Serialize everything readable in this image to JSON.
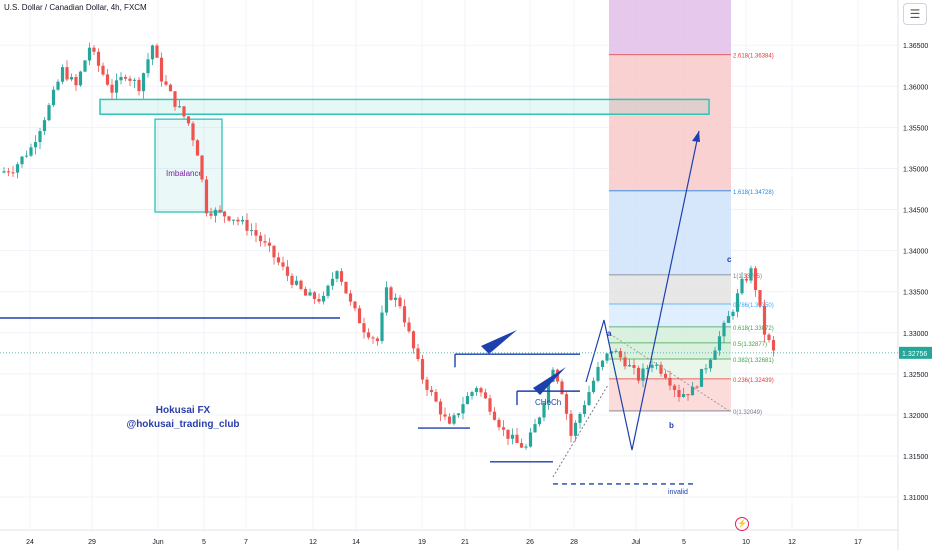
{
  "header": {
    "title": "U.S. Dollar / Canadian Dollar, 4h, FXCM",
    "menu_icon": "menu-icon"
  },
  "watermark": {
    "line1": "Hokusai FX",
    "line2": "@hokusai_trading_club"
  },
  "colors": {
    "up": "#26a69a",
    "down": "#ef5350",
    "drawing": "#1e40af",
    "zone": "#2ec4b6",
    "price_tag": "#26a69a"
  },
  "chart_data": {
    "type": "candlestick",
    "title": "U.S. Dollar / Canadian Dollar, 4h, FXCM",
    "ylim": [
      1.306,
      1.3705
    ],
    "y_ticks": [
      "1.36500",
      "1.36000",
      "1.35500",
      "1.35000",
      "1.34500",
      "1.34000",
      "1.33500",
      "1.33000",
      "1.32500",
      "1.32000",
      "1.31500",
      "1.31000"
    ],
    "x_ticks": [
      "24",
      "29",
      "Jun",
      "5",
      "7",
      "12",
      "14",
      "19",
      "21",
      "26",
      "28",
      "Jul",
      "5",
      "10",
      "12",
      "17"
    ],
    "last_price": "1.32756",
    "grid": true,
    "path": [
      [
        0,
        1.3495
      ],
      [
        3,
        1.35
      ],
      [
        7,
        1.3525
      ],
      [
        11,
        1.3575
      ],
      [
        14,
        1.362
      ],
      [
        17,
        1.36
      ],
      [
        20,
        1.3648
      ],
      [
        22,
        1.3625
      ],
      [
        25,
        1.3595
      ],
      [
        28,
        1.3615
      ],
      [
        31,
        1.36
      ],
      [
        34,
        1.365
      ],
      [
        36,
        1.361
      ],
      [
        39,
        1.358
      ],
      [
        42,
        1.3555
      ],
      [
        44,
        1.352
      ],
      [
        46,
        1.345
      ],
      [
        49,
        1.3445
      ],
      [
        52,
        1.344
      ],
      [
        56,
        1.3425
      ],
      [
        60,
        1.34
      ],
      [
        64,
        1.337
      ],
      [
        68,
        1.3345
      ],
      [
        72,
        1.334
      ],
      [
        75,
        1.338
      ],
      [
        78,
        1.3335
      ],
      [
        81,
        1.3305
      ],
      [
        84,
        1.329
      ],
      [
        86,
        1.335
      ],
      [
        89,
        1.3335
      ],
      [
        92,
        1.328
      ],
      [
        94,
        1.3245
      ],
      [
        97,
        1.3215
      ],
      [
        100,
        1.3185
      ],
      [
        103,
        1.3215
      ],
      [
        106,
        1.3235
      ],
      [
        109,
        1.321
      ],
      [
        112,
        1.318
      ],
      [
        115,
        1.3165
      ],
      [
        117,
        1.316
      ],
      [
        120,
        1.32
      ],
      [
        123,
        1.326
      ],
      [
        125,
        1.323
      ],
      [
        127,
        1.3175
      ],
      [
        130,
        1.3215
      ],
      [
        133,
        1.3255
      ],
      [
        136,
        1.328
      ],
      [
        139,
        1.3265
      ],
      [
        142,
        1.3245
      ],
      [
        145,
        1.3265
      ],
      [
        148,
        1.325
      ],
      [
        151,
        1.3225
      ],
      [
        154,
        1.323
      ],
      [
        157,
        1.326
      ],
      [
        160,
        1.3295
      ],
      [
        163,
        1.333
      ],
      [
        165,
        1.336
      ],
      [
        167,
        1.3375
      ],
      [
        168,
        1.3355
      ],
      [
        170,
        1.33
      ],
      [
        172,
        1.3276
      ]
    ],
    "levels": [
      {
        "label": "2.618(1.36384)",
        "value": 1.36384
      },
      {
        "label": "1.618(1.34728)",
        "value": 1.34728
      },
      {
        "label": "1(1.33705)",
        "value": 1.33705
      },
      {
        "label": "0.786(1.33350)",
        "value": 1.3335
      },
      {
        "label": "0.618(1.33072)",
        "value": 1.33072
      },
      {
        "label": "0.5(1.32877)",
        "value": 1.32877
      },
      {
        "label": "0.382(1.32681)",
        "value": 1.32681
      },
      {
        "label": "0.236(1.32439)",
        "value": 1.32439
      },
      {
        "label": "0(1.32049)",
        "value": 1.32049
      }
    ],
    "annotations": {
      "imbalance": "Imbalance",
      "choch": "CHoCh",
      "invalid": "invalid",
      "wave_a": "a",
      "wave_b": "b",
      "wave_c": "c"
    }
  }
}
